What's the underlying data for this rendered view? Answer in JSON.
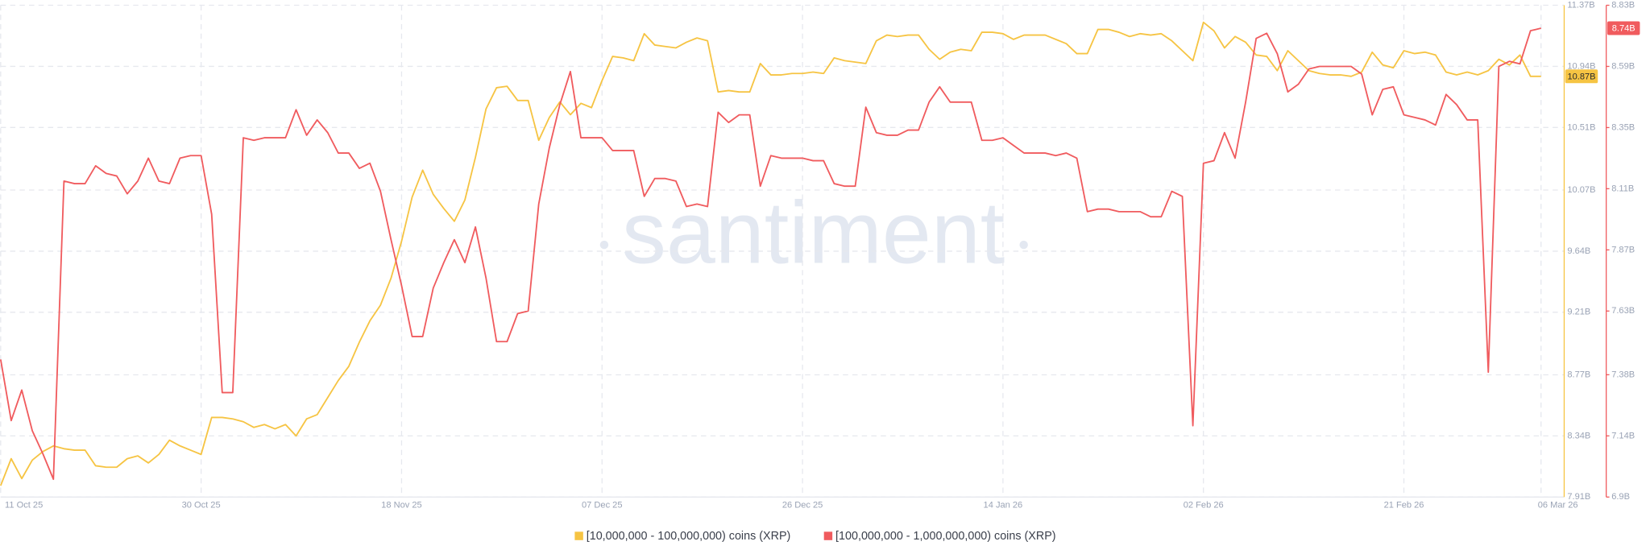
{
  "chart_data": {
    "type": "line",
    "watermark": "santiment",
    "x": [
      "2025-10-11",
      "2025-10-12",
      "2025-10-13",
      "2025-10-14",
      "2025-10-15",
      "2025-10-16",
      "2025-10-17",
      "2025-10-18",
      "2025-10-19",
      "2025-10-20",
      "2025-10-21",
      "2025-10-22",
      "2025-10-23",
      "2025-10-24",
      "2025-10-25",
      "2025-10-26",
      "2025-10-27",
      "2025-10-28",
      "2025-10-29",
      "2025-10-30",
      "2025-10-31",
      "2025-11-01",
      "2025-11-02",
      "2025-11-03",
      "2025-11-04",
      "2025-11-05",
      "2025-11-06",
      "2025-11-07",
      "2025-11-08",
      "2025-11-09",
      "2025-11-10",
      "2025-11-11",
      "2025-11-12",
      "2025-11-13",
      "2025-11-14",
      "2025-11-15",
      "2025-11-16",
      "2025-11-17",
      "2025-11-18",
      "2025-11-19",
      "2025-11-20",
      "2025-11-21",
      "2025-11-22",
      "2025-11-23",
      "2025-11-24",
      "2025-11-25",
      "2025-11-26",
      "2025-11-27",
      "2025-11-28",
      "2025-11-29",
      "2025-11-30",
      "2025-12-01",
      "2025-12-02",
      "2025-12-03",
      "2025-12-04",
      "2025-12-05",
      "2025-12-06",
      "2025-12-07",
      "2025-12-08",
      "2025-12-09",
      "2025-12-10",
      "2025-12-11",
      "2025-12-12",
      "2025-12-13",
      "2025-12-14",
      "2025-12-15",
      "2025-12-16",
      "2025-12-17",
      "2025-12-18",
      "2025-12-19",
      "2025-12-20",
      "2025-12-21",
      "2025-12-22",
      "2025-12-23",
      "2025-12-24",
      "2025-12-25",
      "2025-12-26",
      "2025-12-27",
      "2025-12-28",
      "2025-12-29",
      "2025-12-30",
      "2025-12-31",
      "2026-01-01",
      "2026-01-02",
      "2026-01-03",
      "2026-01-04",
      "2026-01-05",
      "2026-01-06",
      "2026-01-07",
      "2026-01-08",
      "2026-01-09",
      "2026-01-10",
      "2026-01-11",
      "2026-01-12",
      "2026-01-13",
      "2026-01-14",
      "2026-01-15",
      "2026-01-16",
      "2026-01-17",
      "2026-01-18",
      "2026-01-19",
      "2026-01-20",
      "2026-01-21",
      "2026-01-22",
      "2026-01-23",
      "2026-01-24",
      "2026-01-25",
      "2026-01-26",
      "2026-01-27",
      "2026-01-28",
      "2026-01-29",
      "2026-01-30",
      "2026-01-31",
      "2026-02-01",
      "2026-02-02",
      "2026-02-03",
      "2026-02-04",
      "2026-02-05",
      "2026-02-06",
      "2026-02-07",
      "2026-02-08",
      "2026-02-09",
      "2026-02-10",
      "2026-02-11",
      "2026-02-12",
      "2026-02-13",
      "2026-02-14",
      "2026-02-15",
      "2026-02-16",
      "2026-02-17",
      "2026-02-18",
      "2026-02-19",
      "2026-02-20",
      "2026-02-21",
      "2026-02-22",
      "2026-02-23",
      "2026-02-24",
      "2026-02-25",
      "2026-02-26",
      "2026-02-27",
      "2026-02-28",
      "2026-03-01",
      "2026-03-02",
      "2026-03-03",
      "2026-03-04",
      "2026-03-05",
      "2026-03-06"
    ],
    "xlim": [
      "2025-10-11",
      "2026-03-06"
    ],
    "xticks": [
      {
        "value": "2025-10-11",
        "label": "11 Oct 25"
      },
      {
        "value": "2025-10-30",
        "label": "30 Oct 25"
      },
      {
        "value": "2025-11-18",
        "label": "18 Nov 25"
      },
      {
        "value": "2025-12-07",
        "label": "07 Dec 25"
      },
      {
        "value": "2025-12-26",
        "label": "26 Dec 25"
      },
      {
        "value": "2026-01-14",
        "label": "14 Jan 26"
      },
      {
        "value": "2026-02-02",
        "label": "02 Feb 26"
      },
      {
        "value": "2026-02-21",
        "label": "21 Feb 26"
      },
      {
        "value": "2026-03-06",
        "label": "06 Mar 26"
      }
    ],
    "ylim": [
      7.91,
      11.37
    ],
    "yticks": [
      {
        "value": 7.91,
        "label": "7.91B"
      },
      {
        "value": 8.34,
        "label": "8.34B"
      },
      {
        "value": 8.77,
        "label": "8.77B"
      },
      {
        "value": 9.21,
        "label": "9.21B"
      },
      {
        "value": 9.64,
        "label": "9.64B"
      },
      {
        "value": 10.07,
        "label": "10.07B"
      },
      {
        "value": 10.51,
        "label": "10.51B"
      },
      {
        "value": 10.94,
        "label": "10.94B"
      },
      {
        "value": 11.37,
        "label": "11.37B"
      }
    ],
    "y2lim": [
      6.9,
      8.83
    ],
    "y2ticks": [
      {
        "value": 6.9,
        "label": "6.9B"
      },
      {
        "value": 7.14,
        "label": "7.14B"
      },
      {
        "value": 7.38,
        "label": "7.38B"
      },
      {
        "value": 7.63,
        "label": "7.63B"
      },
      {
        "value": 7.87,
        "label": "7.87B"
      },
      {
        "value": 8.11,
        "label": "8.11B"
      },
      {
        "value": 8.35,
        "label": "8.35B"
      },
      {
        "value": 8.59,
        "label": "8.59B"
      },
      {
        "value": 8.83,
        "label": "8.83B"
      }
    ],
    "grid": true,
    "series": [
      {
        "name": "[10,000,000 - 100,000,000) coins (XRP)",
        "color": "#f6c443",
        "axis": "y",
        "end_label": "10.87B",
        "values": [
          7.99,
          8.18,
          8.04,
          8.17,
          8.23,
          8.27,
          8.25,
          8.24,
          8.24,
          8.13,
          8.12,
          8.12,
          8.18,
          8.2,
          8.15,
          8.21,
          8.31,
          8.27,
          8.24,
          8.21,
          8.47,
          8.47,
          8.46,
          8.44,
          8.4,
          8.42,
          8.39,
          8.42,
          8.34,
          8.46,
          8.49,
          8.61,
          8.73,
          8.83,
          9.0,
          9.15,
          9.26,
          9.45,
          9.71,
          10.02,
          10.21,
          10.04,
          9.94,
          9.85,
          10.0,
          10.3,
          10.64,
          10.79,
          10.8,
          10.7,
          10.7,
          10.42,
          10.58,
          10.69,
          10.6,
          10.68,
          10.65,
          10.84,
          11.01,
          11.0,
          10.98,
          11.17,
          11.09,
          11.08,
          11.07,
          11.11,
          11.14,
          11.12,
          10.76,
          10.77,
          10.76,
          10.76,
          10.96,
          10.88,
          10.88,
          10.89,
          10.89,
          10.9,
          10.89,
          11.0,
          10.98,
          10.97,
          10.96,
          11.12,
          11.16,
          11.15,
          11.16,
          11.16,
          11.06,
          10.99,
          11.04,
          11.06,
          11.05,
          11.18,
          11.18,
          11.17,
          11.13,
          11.16,
          11.16,
          11.16,
          11.13,
          11.1,
          11.03,
          11.03,
          11.2,
          11.2,
          11.18,
          11.15,
          11.17,
          11.16,
          11.17,
          11.12,
          11.05,
          10.98,
          11.25,
          11.19,
          11.07,
          11.15,
          11.11,
          11.02,
          11.01,
          10.91,
          11.05,
          10.98,
          10.91,
          10.89,
          10.88,
          10.88,
          10.87,
          10.9,
          11.04,
          10.95,
          10.93,
          11.05,
          11.03,
          11.04,
          11.02,
          10.9,
          10.88,
          10.9,
          10.88,
          10.91,
          10.99,
          10.95,
          11.02,
          10.87,
          10.87
        ]
      },
      {
        "name": "[100,000,000 - 1,000,000,000) coins (XRP)",
        "color": "#f05b5e",
        "axis": "y2",
        "end_label": "8.74B",
        "values": [
          7.44,
          7.2,
          7.32,
          7.16,
          7.07,
          6.97,
          8.14,
          8.13,
          8.13,
          8.2,
          8.17,
          8.16,
          8.09,
          8.14,
          8.23,
          8.14,
          8.13,
          8.23,
          8.24,
          8.24,
          8.01,
          7.31,
          7.31,
          8.31,
          8.3,
          8.31,
          8.31,
          8.31,
          8.42,
          8.32,
          8.38,
          8.33,
          8.25,
          8.25,
          8.19,
          8.21,
          8.1,
          7.91,
          7.73,
          7.53,
          7.53,
          7.72,
          7.82,
          7.91,
          7.82,
          7.96,
          7.76,
          7.51,
          7.51,
          7.62,
          7.63,
          8.05,
          8.27,
          8.44,
          8.57,
          8.31,
          8.31,
          8.31,
          8.26,
          8.26,
          8.26,
          8.08,
          8.15,
          8.15,
          8.14,
          8.04,
          8.05,
          8.04,
          8.41,
          8.37,
          8.4,
          8.4,
          8.12,
          8.24,
          8.23,
          8.23,
          8.23,
          8.22,
          8.22,
          8.13,
          8.12,
          8.12,
          8.43,
          8.33,
          8.32,
          8.32,
          8.34,
          8.34,
          8.45,
          8.51,
          8.45,
          8.45,
          8.45,
          8.3,
          8.3,
          8.31,
          8.28,
          8.25,
          8.25,
          8.25,
          8.24,
          8.25,
          8.23,
          8.02,
          8.03,
          8.03,
          8.02,
          8.02,
          8.02,
          8.0,
          8.0,
          8.1,
          8.08,
          7.18,
          8.21,
          8.22,
          8.33,
          8.23,
          8.45,
          8.7,
          8.72,
          8.64,
          8.49,
          8.52,
          8.58,
          8.59,
          8.59,
          8.59,
          8.59,
          8.56,
          8.4,
          8.5,
          8.51,
          8.4,
          8.39,
          8.38,
          8.36,
          8.48,
          8.44,
          8.38,
          8.38,
          7.39,
          8.59,
          8.61,
          8.6,
          8.73,
          8.74
        ]
      }
    ]
  }
}
